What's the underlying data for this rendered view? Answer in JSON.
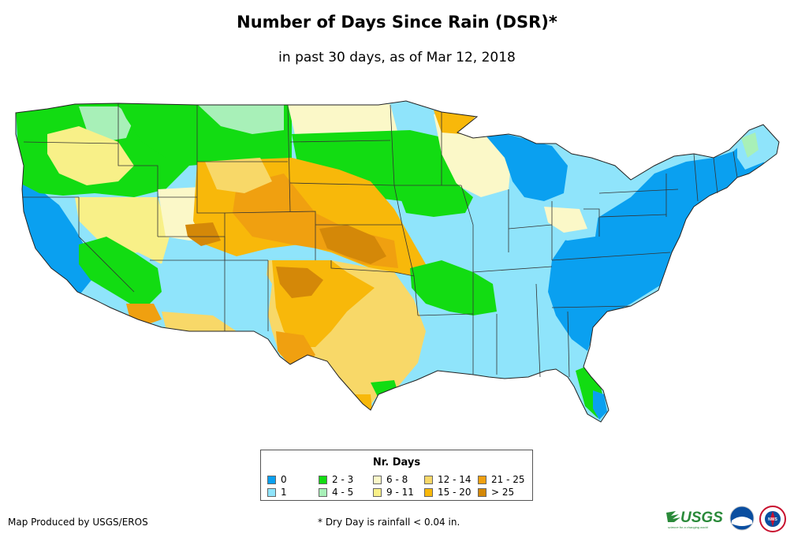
{
  "title": "Number of Days Since Rain (DSR)*",
  "subtitle": "in past 30 days, as of Mar 12, 2018",
  "legend": {
    "title": "Nr. Days",
    "items": [
      {
        "label": "0",
        "color": "#0aa0f0"
      },
      {
        "label": "1",
        "color": "#8fe4fb"
      },
      {
        "label": "2 - 3",
        "color": "#12dc12"
      },
      {
        "label": "4 - 5",
        "color": "#a8f0b8"
      },
      {
        "label": "6 - 8",
        "color": "#fbf8c8"
      },
      {
        "label": "9 - 11",
        "color": "#f8f088"
      },
      {
        "label": "12 - 14",
        "color": "#f8d868"
      },
      {
        "label": "15 - 20",
        "color": "#f8b80a"
      },
      {
        "label": "21 - 25",
        "color": "#f0a010"
      },
      {
        "label": "> 25",
        "color": "#d48808"
      }
    ]
  },
  "footer": {
    "credit": "Map Produced by USGS/EROS",
    "footnote": "* Dry Day is rainfall < 0.04 in."
  },
  "logos": {
    "usgs": "USGS",
    "usgs_tagline": "science for a changing world",
    "noaa": "noaa",
    "nws": "NWS"
  }
}
